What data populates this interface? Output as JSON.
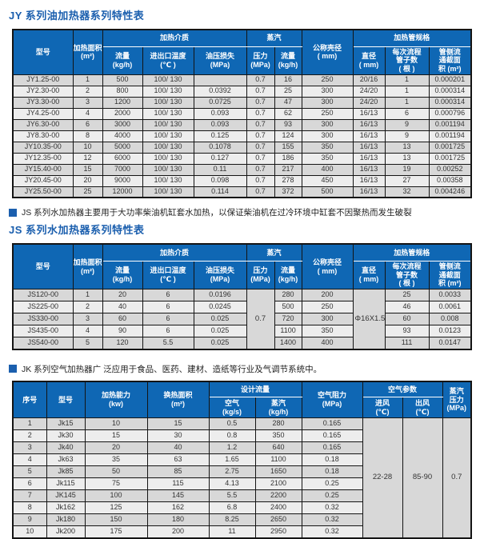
{
  "colors": {
    "header_blue": "#0f67b4",
    "title_blue": "#1b5fae",
    "stripe_dark": "#d8d8d8",
    "stripe_light": "#ededed",
    "border": "#141414"
  },
  "jy": {
    "title": "JY 系列油加热器系列特性表",
    "header": {
      "model": "型号",
      "area": "加热面积\n(m²)",
      "medium_group": "加热介质",
      "flow": "流量\n(kg/h)",
      "inlet_outlet_temp": "进出口温度\n(℃ )",
      "oil_pressure_loss": "油压损失\n(MPa)",
      "steam_group": "蒸汽",
      "pressure": "压力\n(MPa)",
      "steam_flow": "流量\n(kg/h)",
      "shell_diameter": "公称壳径\n( mm)",
      "tube_group": "加热管规格",
      "diameter": "直径\n( mm)",
      "tubes_per_pass": "每次流程\n管子数\n( 根 )",
      "tube_side_area": "管侧流\n通截面\n积 (m²)"
    },
    "rows": [
      [
        "JY1.25-00",
        "1",
        "500",
        "100/ 130",
        "",
        "0.7",
        "16",
        "250",
        "20/16",
        "1",
        "0.000201"
      ],
      [
        "JY2.30-00",
        "2",
        "800",
        "100/ 130",
        "0.0392",
        "0.7",
        "25",
        "300",
        "24/20",
        "1",
        "0.000314"
      ],
      [
        "JY3.30-00",
        "3",
        "1200",
        "100/ 130",
        "0.0725",
        "0.7",
        "47",
        "300",
        "24/20",
        "1",
        "0.000314"
      ],
      [
        "JY4.25-00",
        "4",
        "2000",
        "100/ 130",
        "0.093",
        "0.7",
        "62",
        "250",
        "16/13",
        "6",
        "0.000796"
      ],
      [
        "JY6.30-00",
        "6",
        "3000",
        "100/ 130",
        "0.093",
        "0.7",
        "93",
        "300",
        "16/13",
        "9",
        "0.001194"
      ],
      [
        "JY8.30-00",
        "8",
        "4000",
        "100/ 130",
        "0.125",
        "0.7",
        "124",
        "300",
        "16/13",
        "9",
        "0.001194"
      ],
      [
        "JY10.35-00",
        "10",
        "5000",
        "100/ 130",
        "0.1078",
        "0.7",
        "155",
        "350",
        "16/13",
        "13",
        "0.001725"
      ],
      [
        "JY12.35-00",
        "12",
        "6000",
        "100/ 130",
        "0.127",
        "0.7",
        "186",
        "350",
        "16/13",
        "13",
        "0.001725"
      ],
      [
        "JY15.40-00",
        "15",
        "7000",
        "100/ 130",
        "0.11",
        "0.7",
        "217",
        "400",
        "16/13",
        "19",
        "0.00252"
      ],
      [
        "JY20.45-00",
        "20",
        "9000",
        "100/ 130",
        "0.098",
        "0.7",
        "278",
        "450",
        "16/13",
        "27",
        "0.00358"
      ],
      [
        "JY25.50-00",
        "25",
        "12000",
        "100/ 130",
        "0.114",
        "0.7",
        "372",
        "500",
        "16/13",
        "32",
        "0.004246"
      ]
    ]
  },
  "js": {
    "note": "JS 系列水加热器主要用于大功率柴油机缸套水加热，以保证柴油机在过冷环境中缸套不因聚热而发生破裂",
    "title": "JS 系列水加热器系列特性表",
    "header": {
      "model": "型号",
      "area": "加热面积\n(m²)",
      "medium_group": "加热介质",
      "flow": "流量\n(kg/h)",
      "inlet_outlet_temp": "进出口温度\n(℃ )",
      "oil_pressure_loss": "油压损失\n(MPa)",
      "steam_group": "蒸汽",
      "pressure": "压力\n(MPa)",
      "steam_flow": "流量\n(kg/h)",
      "shell_diameter": "公称壳径\n( mm)",
      "tube_group": "加热管规格",
      "diameter": "直径\n( mm)",
      "tubes_per_pass": "每次流程\n管子数\n( 根 )",
      "tube_side_area": "管侧流\n通截面\n积 (m²)"
    },
    "rows": [
      [
        "JS120-00",
        "1",
        "20",
        "6",
        "0.0196",
        {
          "text": "0.7",
          "rowspan": 5
        },
        "280",
        "200",
        {
          "text": "Φ16X1.5",
          "rowspan": 5
        },
        "25",
        "0.0033"
      ],
      [
        "JS225-00",
        "2",
        "40",
        "6",
        "0.0245",
        "500",
        "250",
        "46",
        "0.0061"
      ],
      [
        "JS330-00",
        "3",
        "60",
        "6",
        "0.025",
        "720",
        "300",
        "60",
        "0.008"
      ],
      [
        "JS435-00",
        "4",
        "90",
        "6",
        "0.025",
        "1100",
        "350",
        "93",
        "0.0123"
      ],
      [
        "JS540-00",
        "5",
        "120",
        "5.5",
        "0.025",
        "1400",
        "400",
        "111",
        "0.0147"
      ]
    ]
  },
  "jk": {
    "note": "JK 系列空气加热器广 泛应用于食品、医药、建材、造纸等行业及气调节系统中。",
    "header": {
      "index": "序号",
      "model": "型号",
      "capacity": "加热能力\n(kw)",
      "exchange_area": "换热面积\n(m²)",
      "design_flow_group": "设计流量",
      "air": "空气\n(kg/s)",
      "steam": "蒸汽\n(kg/h)",
      "air_resistance": "空气阻力\n(MPa)",
      "air_params_group": "空气参数",
      "inlet": "进风\n(℃)",
      "outlet": "出风\n(℃)",
      "steam_pressure": "蒸汽\n压力\n(MPa)"
    },
    "rows": [
      [
        "1",
        "Jk15",
        "10",
        "15",
        "0.5",
        "280",
        "0.165",
        {
          "text": "22-28",
          "rowspan": 10
        },
        {
          "text": "85-90",
          "rowspan": 10
        },
        {
          "text": "0.7",
          "rowspan": 10
        }
      ],
      [
        "2",
        "Jk30",
        "15",
        "30",
        "0.8",
        "350",
        "0.165"
      ],
      [
        "3",
        "Jk40",
        "20",
        "40",
        "1.2",
        "640",
        "0.165"
      ],
      [
        "4",
        "Jk63",
        "35",
        "63",
        "1.65",
        "1100",
        "0.18"
      ],
      [
        "5",
        "Jk85",
        "50",
        "85",
        "2.75",
        "1650",
        "0.18"
      ],
      [
        "6",
        "Jk115",
        "75",
        "115",
        "4.13",
        "2100",
        "0.25"
      ],
      [
        "7",
        "JK145",
        "100",
        "145",
        "5.5",
        "2200",
        "0.25"
      ],
      [
        "8",
        "Jk162",
        "125",
        "162",
        "6.8",
        "2400",
        "0.32"
      ],
      [
        "9",
        "Jk180",
        "150",
        "180",
        "8.25",
        "2650",
        "0.32"
      ],
      [
        "10",
        "Jk200",
        "175",
        "200",
        "11",
        "2950",
        "0.32"
      ]
    ]
  }
}
